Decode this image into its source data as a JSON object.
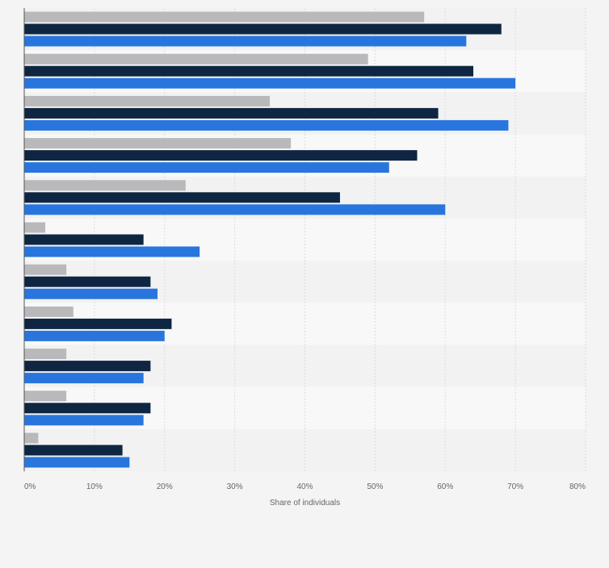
{
  "chart_data": {
    "type": "bar",
    "orientation": "horizontal",
    "categories": [
      "",
      "",
      "",
      "",
      "",
      "",
      "",
      "",
      "",
      "",
      ""
    ],
    "series": [
      {
        "values": [
          57,
          49,
          35,
          38,
          23,
          3,
          6,
          7,
          6,
          6,
          2
        ]
      },
      {
        "values": [
          68,
          64,
          59,
          56,
          45,
          17,
          18,
          21,
          18,
          18,
          14
        ]
      },
      {
        "values": [
          63,
          70,
          69,
          52,
          60,
          25,
          19,
          20,
          17,
          17,
          15
        ]
      }
    ],
    "colors": [
      "#b9b9bb",
      "#0f2642",
      "#2876dd"
    ],
    "xlabel": "Share of individuals",
    "xlim": [
      0,
      80
    ],
    "xticks": [
      "0%",
      "10%",
      "20%",
      "30%",
      "40%",
      "50%",
      "60%",
      "70%",
      "80%"
    ],
    "grid": true,
    "legend": "none"
  }
}
